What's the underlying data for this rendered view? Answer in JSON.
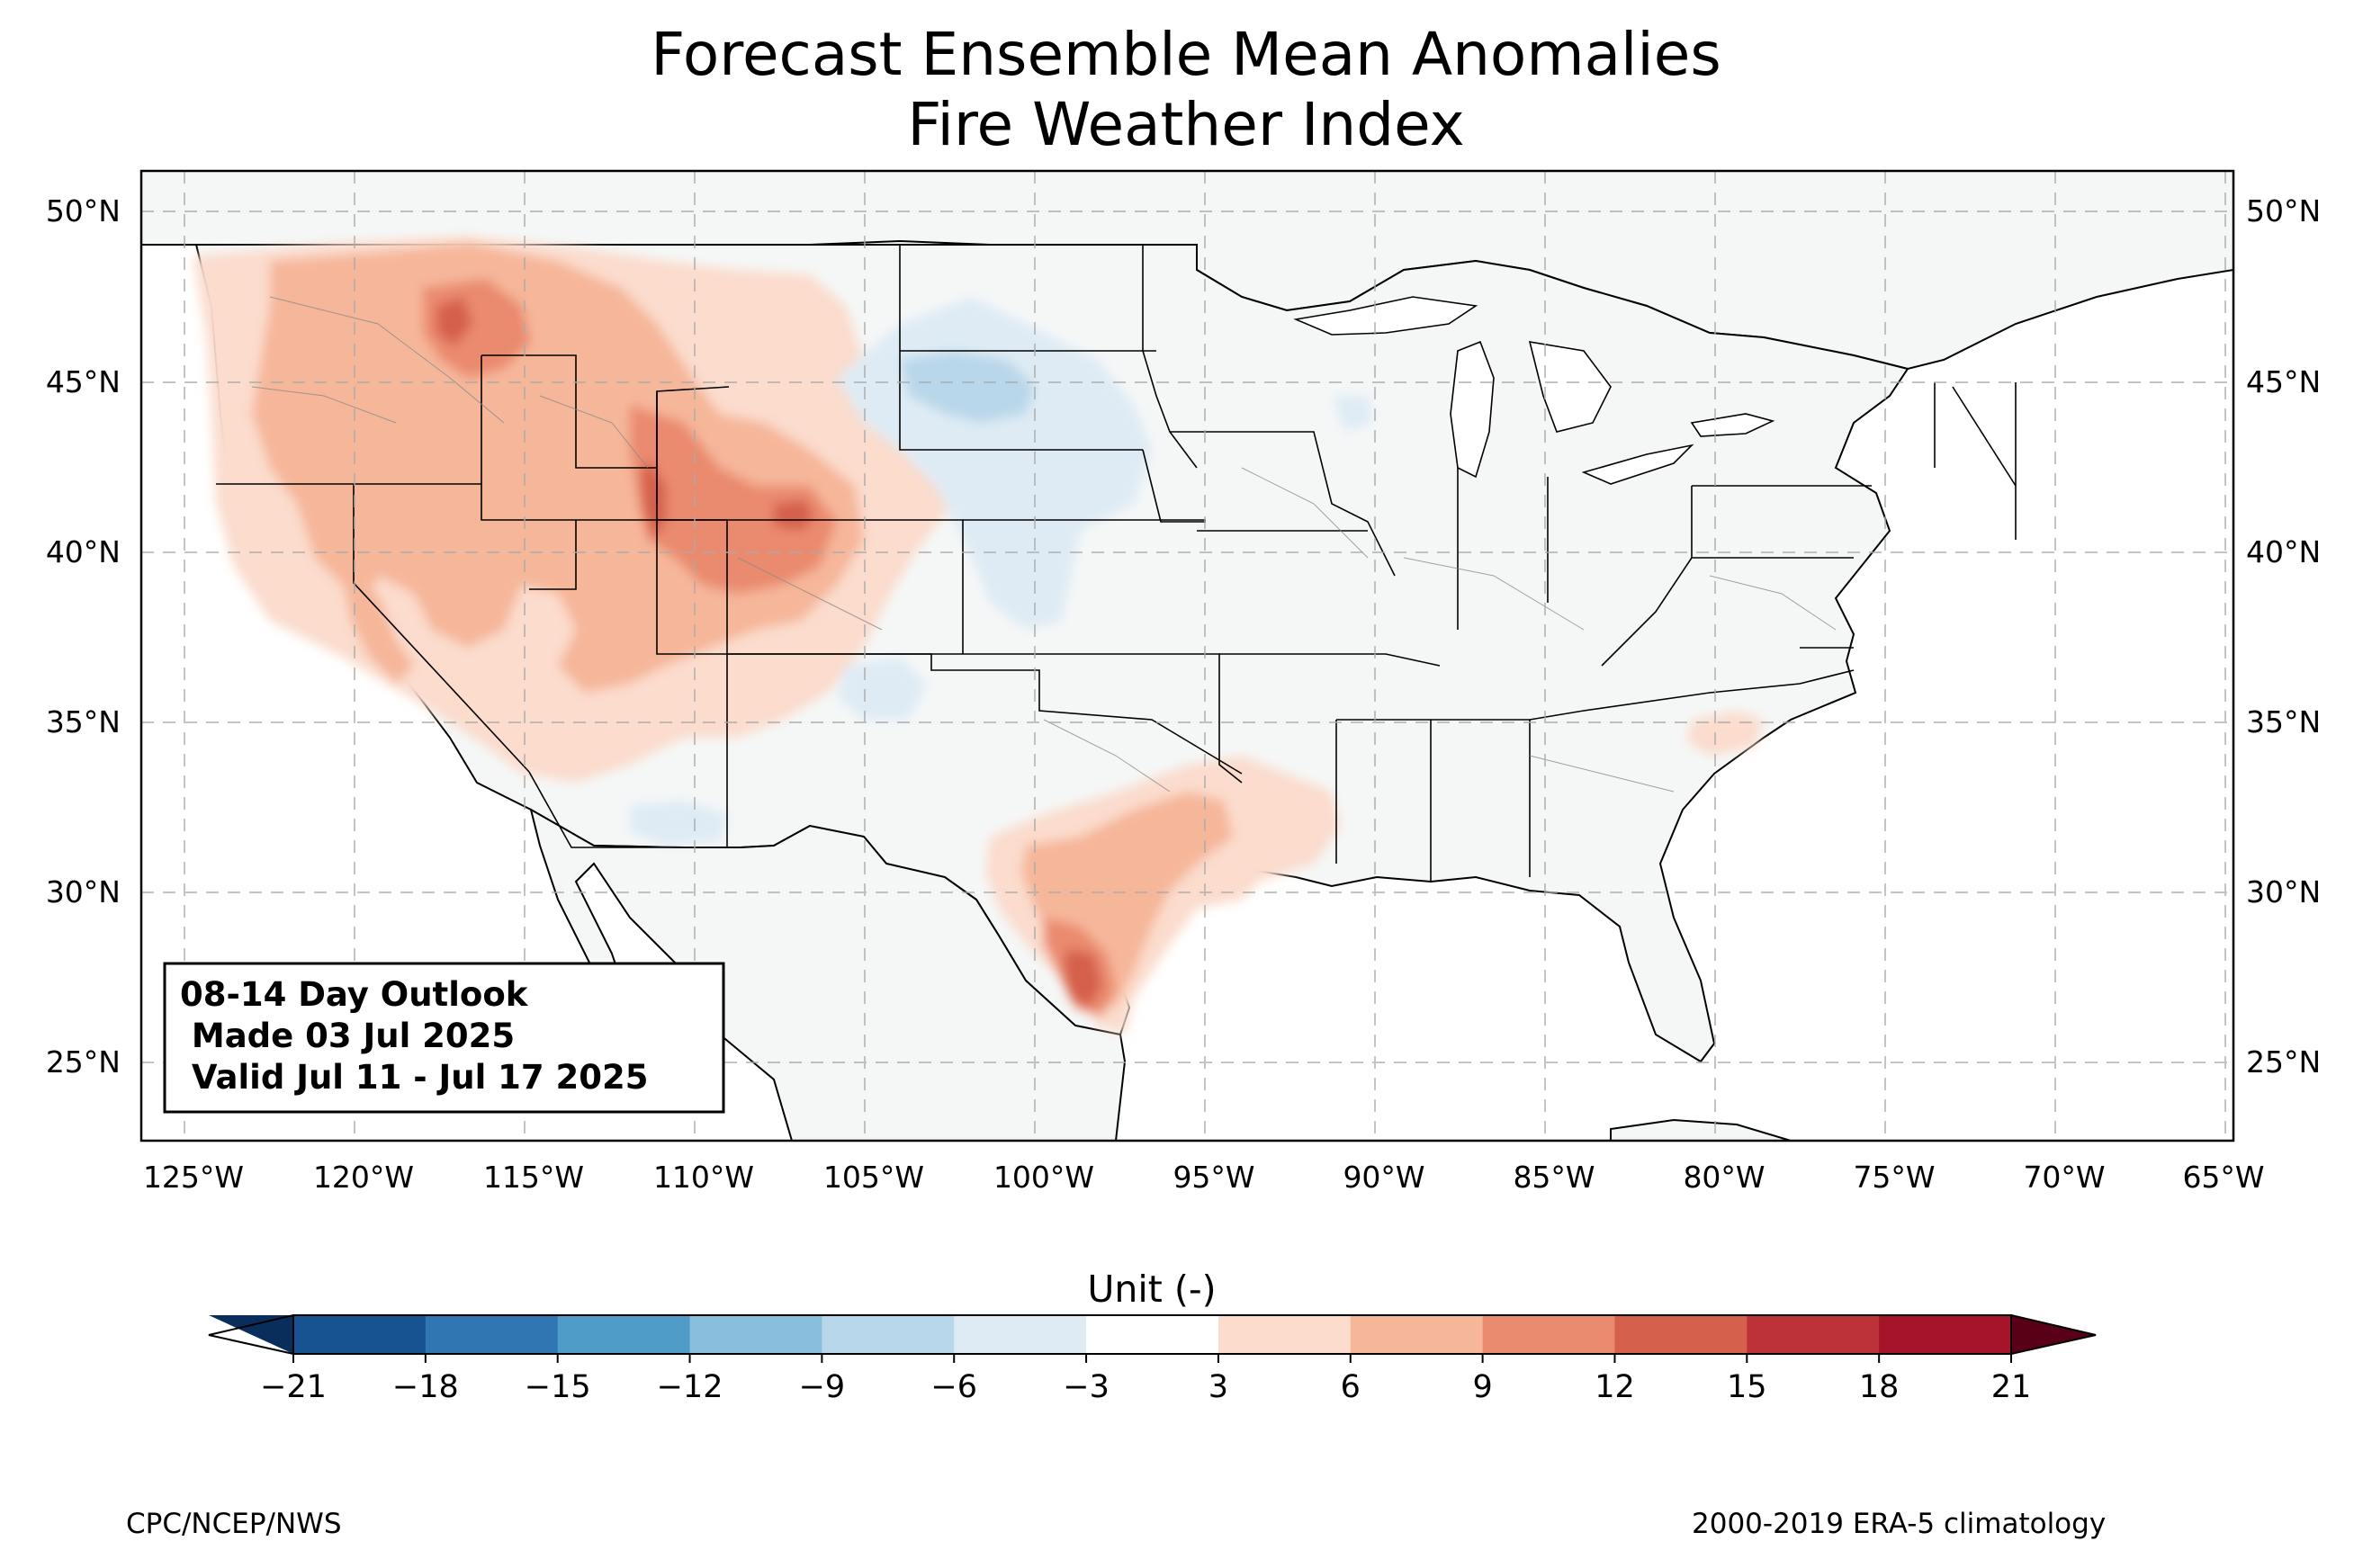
{
  "title": {
    "line1": "Forecast Ensemble Mean Anomalies",
    "line2": "Fire Weather Index"
  },
  "map": {
    "lat_ticks": [
      "50°N",
      "45°N",
      "40°N",
      "35°N",
      "30°N",
      "25°N"
    ],
    "lon_ticks": [
      "125°W",
      "120°W",
      "115°W",
      "110°W",
      "105°W",
      "100°W",
      "95°W",
      "90°W",
      "85°W",
      "80°W",
      "75°W",
      "70°W",
      "65°W"
    ],
    "extent": {
      "lon_min": -126.3,
      "lon_max": -64.9,
      "lat_min": 22.8,
      "lat_max": 51.2
    },
    "ocean_color": "#ffffff",
    "land_color": "#f5f7f7"
  },
  "infobox": {
    "line1": "08-14 Day Outlook",
    "line2": " Made 03 Jul 2025",
    "line3": " Valid Jul 11 - Jul 17 2025"
  },
  "colorbar": {
    "label": "Unit (-)",
    "ticks": [
      "−21",
      "−18",
      "−15",
      "−12",
      "−9",
      "−6",
      "−3",
      "3",
      "6",
      "9",
      "12",
      "15",
      "18",
      "21"
    ],
    "extend_low_color": "#0a2e5c",
    "extend_high_color": "#5a0016",
    "colors": [
      "#175291",
      "#2f76b3",
      "#4f9cc9",
      "#88bedc",
      "#b9d7ea",
      "#deebf4",
      "#ffffff",
      "#fbdccd",
      "#f6b69a",
      "#ea8a6e",
      "#d5604c",
      "#bc3238",
      "#a51428"
    ]
  },
  "footer": {
    "left": "CPC/NCEP/NWS",
    "right": "2000-2019 ERA-5 climatology"
  }
}
